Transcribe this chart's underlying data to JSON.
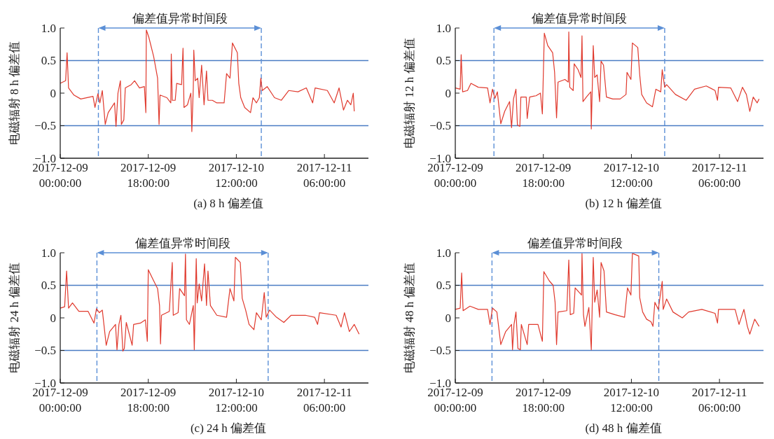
{
  "chart_data": [
    {
      "type": "line",
      "title": "(a) 8 h 偏差值",
      "ylabel": "电磁辐射 8 h 偏差值",
      "annotations": [
        "偏差值异常时间段"
      ],
      "xlim": [
        "2017-12-09T00:00",
        "2017-12-11T15:00"
      ],
      "xticks": [
        {
          "value": "2017-12-09T00:00",
          "label": "2017-12-09 00:00:00"
        },
        {
          "value": "2017-12-09T18:00",
          "label": "2017-12-09 18:00:00"
        },
        {
          "value": "2017-12-10T12:00",
          "label": "2017-12-10 12:00:00"
        },
        {
          "value": "2017-12-11T06:00",
          "label": "2017-12-11 06:00:00"
        }
      ],
      "ylim": [
        -1,
        1
      ],
      "yticks": [
        {
          "value": -1,
          "label": "−1.0"
        },
        {
          "value": -0.5,
          "label": "−0.5"
        },
        {
          "value": 0,
          "label": "0"
        },
        {
          "value": 0.5,
          "label": "0.5"
        },
        {
          "value": 1,
          "label": "1.0"
        }
      ],
      "ref_lines": [
        {
          "axis": "y",
          "value": 0.5,
          "color": "#4a7cc4"
        },
        {
          "axis": "y",
          "value": -0.5,
          "color": "#4a7cc4"
        },
        {
          "axis": "x",
          "value": "2017-12-09T07:48",
          "color": "#5b8fd6",
          "line_style": "dashed"
        },
        {
          "axis": "x",
          "value": "2017-12-10T17:06",
          "color": "#5b8fd6",
          "line_style": "dashed"
        }
      ],
      "series": [
        {
          "color": "#e03a2e",
          "x": [
            "2017-12-09T00:00",
            "2017-12-09T01:06",
            "2017-12-09T01:24",
            "2017-12-09T01:42",
            "2017-12-09T02:48",
            "2017-12-09T04:12",
            "2017-12-09T06:42",
            "2017-12-09T07:06",
            "2017-12-09T07:42",
            "2017-12-09T08:06",
            "2017-12-09T08:36",
            "2017-12-09T09:12",
            "2017-12-09T09:48",
            "2017-12-09T11:06",
            "2017-12-09T11:24",
            "2017-12-09T11:48",
            "2017-12-09T12:18",
            "2017-12-09T12:30",
            "2017-12-09T13:00",
            "2017-12-09T13:18",
            "2017-12-09T14:30",
            "2017-12-09T15:12",
            "2017-12-09T16:12",
            "2017-12-09T17:12",
            "2017-12-09T17:30",
            "2017-12-09T17:36",
            "2017-12-09T18:06",
            "2017-12-09T19:06",
            "2017-12-09T19:54",
            "2017-12-09T20:12",
            "2017-12-09T20:24",
            "2017-12-09T21:48",
            "2017-12-09T22:36",
            "2017-12-09T22:42",
            "2017-12-09T22:54",
            "2017-12-09T23:30",
            "2017-12-09T23:48",
            "2017-12-10T00:48",
            "2017-12-10T01:06",
            "2017-12-10T01:18",
            "2017-12-10T02:00",
            "2017-12-10T02:42",
            "2017-12-10T02:54",
            "2017-12-10T03:12",
            "2017-12-10T03:18",
            "2017-12-10T03:36",
            "2017-12-10T04:06",
            "2017-12-10T04:24",
            "2017-12-10T04:54",
            "2017-12-10T05:24",
            "2017-12-10T05:54",
            "2017-12-10T06:12",
            "2017-12-10T07:06",
            "2017-12-10T08:00",
            "2017-12-10T09:30",
            "2017-12-10T10:00",
            "2017-12-10T10:42",
            "2017-12-10T11:12",
            "2017-12-10T12:12",
            "2017-12-10T12:30",
            "2017-12-10T12:54",
            "2017-12-10T13:42",
            "2017-12-10T14:54",
            "2017-12-10T15:24",
            "2017-12-10T16:06",
            "2017-12-10T16:42",
            "2017-12-10T17:00",
            "2017-12-10T17:18",
            "2017-12-10T18:18",
            "2017-12-10T19:48",
            "2017-12-10T21:12",
            "2017-12-10T22:42",
            "2017-12-11T00:36",
            "2017-12-11T02:18",
            "2017-12-11T03:36",
            "2017-12-11T04:06",
            "2017-12-11T06:36",
            "2017-12-11T08:00",
            "2017-12-11T09:00",
            "2017-12-11T09:54",
            "2017-12-11T10:42",
            "2017-12-11T11:24",
            "2017-12-11T11:54",
            "2017-12-11T12:06"
          ],
          "values": [
            0.15,
            0.19,
            0.62,
            0.08,
            -0.03,
            -0.09,
            -0.05,
            -0.22,
            -0.01,
            -0.15,
            0.04,
            -0.48,
            -0.3,
            -0.15,
            -0.51,
            0,
            0.19,
            -0.48,
            -0.41,
            0.08,
            0.13,
            0.19,
            0.08,
            0.1,
            -0.3,
            0.97,
            0.86,
            0.56,
            0.23,
            -0.48,
            -0.03,
            -0.07,
            -0.15,
            0.6,
            -0.11,
            -0.11,
            0.15,
            0.13,
            0.69,
            -0.22,
            -0.18,
            0,
            -0.59,
            0.08,
            0.66,
            0.19,
            0.23,
            -0.07,
            0.43,
            -0.18,
            0.34,
            -0.11,
            -0.11,
            -0.15,
            -0.15,
            0.3,
            0.23,
            0.77,
            0.62,
            0.15,
            -0.07,
            -0.22,
            -0.3,
            -0.07,
            -0.15,
            -0.07,
            0.23,
            0.04,
            0.1,
            -0.07,
            -0.11,
            0.04,
            0.02,
            0.08,
            -0.15,
            0.08,
            0.04,
            -0.15,
            0.08,
            -0.26,
            -0.11,
            -0.18,
            0,
            -0.28
          ]
        }
      ]
    },
    {
      "type": "line",
      "title": "(b) 12 h 偏差值",
      "ylabel": "电磁辐射 12 h 偏差值",
      "annotations": [
        "偏差值异常时间段"
      ],
      "xlim": [
        "2017-12-09T00:00",
        "2017-12-11T15:00"
      ],
      "xticks": [
        {
          "value": "2017-12-09T00:00",
          "label": "2017-12-09 00:00:00"
        },
        {
          "value": "2017-12-09T18:00",
          "label": "2017-12-09 18:00:00"
        },
        {
          "value": "2017-12-10T12:00",
          "label": "2017-12-10 12:00:00"
        },
        {
          "value": "2017-12-11T06:00",
          "label": "2017-12-11 06:00:00"
        }
      ],
      "ylim": [
        -1,
        1
      ],
      "yticks": [
        {
          "value": -1,
          "label": "−1.0"
        },
        {
          "value": -0.5,
          "label": "−0.5"
        },
        {
          "value": 0,
          "label": "0"
        },
        {
          "value": 0.5,
          "label": "0.5"
        },
        {
          "value": 1,
          "label": "1.0"
        }
      ],
      "ref_lines": [
        {
          "axis": "y",
          "value": 0.5,
          "color": "#4a7cc4"
        },
        {
          "axis": "y",
          "value": -0.5,
          "color": "#4a7cc4"
        },
        {
          "axis": "x",
          "value": "2017-12-09T07:54",
          "color": "#5b8fd6",
          "line_style": "dashed"
        },
        {
          "axis": "x",
          "value": "2017-12-10T18:48",
          "color": "#5b8fd6",
          "line_style": "dashed"
        }
      ],
      "series": [
        {
          "color": "#e03a2e",
          "x": [
            "2017-12-09T00:00",
            "2017-12-09T01:00",
            "2017-12-09T01:12",
            "2017-12-09T01:30",
            "2017-12-09T02:30",
            "2017-12-09T03:12",
            "2017-12-09T04:42",
            "2017-12-09T06:36",
            "2017-12-09T07:06",
            "2017-12-09T07:36",
            "2017-12-09T08:06",
            "2017-12-09T08:36",
            "2017-12-09T09:18",
            "2017-12-09T10:06",
            "2017-12-09T11:06",
            "2017-12-09T11:30",
            "2017-12-09T11:54",
            "2017-12-09T12:24",
            "2017-12-09T12:42",
            "2017-12-09T13:12",
            "2017-12-09T13:24",
            "2017-12-09T14:30",
            "2017-12-09T14:42",
            "2017-12-09T15:12",
            "2017-12-09T16:30",
            "2017-12-09T17:24",
            "2017-12-09T17:48",
            "2017-12-09T18:12",
            "2017-12-09T18:54",
            "2017-12-09T19:54",
            "2017-12-09T20:18",
            "2017-12-09T20:42",
            "2017-12-09T21:00",
            "2017-12-09T22:24",
            "2017-12-09T23:06",
            "2017-12-09T23:12",
            "2017-12-09T23:24",
            "2017-12-10T00:06",
            "2017-12-10T00:18",
            "2017-12-10T01:06",
            "2017-12-10T01:42",
            "2017-12-10T01:54",
            "2017-12-10T02:06",
            "2017-12-10T02:48",
            "2017-12-10T03:42",
            "2017-12-10T03:48",
            "2017-12-10T04:12",
            "2017-12-10T04:30",
            "2017-12-10T05:00",
            "2017-12-10T05:30",
            "2017-12-10T05:48",
            "2017-12-10T06:18",
            "2017-12-10T06:54",
            "2017-12-10T08:12",
            "2017-12-10T09:42",
            "2017-12-10T10:54",
            "2017-12-10T11:06",
            "2017-12-10T11:54",
            "2017-12-10T12:12",
            "2017-12-10T13:18",
            "2017-12-10T13:42",
            "2017-12-10T14:06",
            "2017-12-10T15:06",
            "2017-12-10T16:18",
            "2017-12-10T17:00",
            "2017-12-10T18:00",
            "2017-12-10T18:18",
            "2017-12-10T18:48",
            "2017-12-10T19:12",
            "2017-12-10T21:00",
            "2017-12-10T23:12",
            "2017-12-11T00:54",
            "2017-12-11T03:18",
            "2017-12-11T05:06",
            "2017-12-11T05:36",
            "2017-12-11T05:48",
            "2017-12-11T08:18",
            "2017-12-11T09:42",
            "2017-12-11T10:42",
            "2017-12-11T11:30",
            "2017-12-11T12:12",
            "2017-12-11T12:54",
            "2017-12-11T13:42",
            "2017-12-11T14:06"
          ],
          "values": [
            0.08,
            0.06,
            0.59,
            0.02,
            0.04,
            0.15,
            0.09,
            0.08,
            -0.15,
            0.06,
            -0.08,
            0.02,
            -0.47,
            -0.28,
            -0.13,
            -0.53,
            -0.09,
            0.06,
            -0.49,
            -0.51,
            -0.06,
            -0.06,
            -0.39,
            -0.06,
            -0.04,
            0,
            -0.32,
            0.92,
            0.73,
            0.62,
            0.32,
            -0.38,
            0.17,
            0.21,
            0.17,
            0.94,
            0.09,
            0.04,
            0.45,
            0.36,
            0.24,
            0.88,
            -0.13,
            -0.06,
            0.02,
            -0.55,
            0.73,
            0.24,
            0.28,
            -0.13,
            0.49,
            0.43,
            -0.06,
            -0.09,
            -0.09,
            -0.02,
            0.32,
            0.21,
            0.77,
            0.7,
            0.28,
            -0.02,
            -0.15,
            -0.21,
            0.06,
            0.02,
            0.36,
            0.09,
            0.13,
            -0.02,
            -0.11,
            0.06,
            0.11,
            0.04,
            -0.11,
            0.09,
            0.08,
            -0.13,
            0.09,
            -0.02,
            -0.28,
            -0.06,
            -0.15,
            -0.09
          ]
        }
      ]
    },
    {
      "type": "line",
      "title": "(c) 24 h 偏差值",
      "ylabel": "电磁辐射 24 h  偏差值",
      "annotations": [
        "偏差值异常时间段"
      ],
      "xlim": [
        "2017-12-09T00:00",
        "2017-12-11T15:00"
      ],
      "xticks": [
        {
          "value": "2017-12-09T00:00",
          "label": "2017-12-09 00:00:00"
        },
        {
          "value": "2017-12-09T18:00",
          "label": "2017-12-09 18:00:00"
        },
        {
          "value": "2017-12-10T12:00",
          "label": "2017-12-10 12:00:00"
        },
        {
          "value": "2017-12-11T06:00",
          "label": "2017-12-11 06:00:00"
        }
      ],
      "ylim": [
        -1,
        1
      ],
      "yticks": [
        {
          "value": -1,
          "label": "−1.0"
        },
        {
          "value": -0.5,
          "label": "−0.5"
        },
        {
          "value": 0,
          "label": "0"
        },
        {
          "value": 0.5,
          "label": "0.5"
        },
        {
          "value": 1,
          "label": "1.0"
        }
      ],
      "ref_lines": [
        {
          "axis": "y",
          "value": 0.5,
          "color": "#4a7cc4"
        },
        {
          "axis": "y",
          "value": -0.5,
          "color": "#4a7cc4"
        },
        {
          "axis": "x",
          "value": "2017-12-09T07:30",
          "color": "#5b8fd6",
          "line_style": "dashed"
        },
        {
          "axis": "x",
          "value": "2017-12-10T18:30",
          "color": "#5b8fd6",
          "line_style": "dashed"
        }
      ],
      "series": [
        {
          "color": "#e03a2e",
          "x": [
            "2017-12-09T00:00",
            "2017-12-09T00:54",
            "2017-12-09T01:18",
            "2017-12-09T01:42",
            "2017-12-09T02:30",
            "2017-12-09T03:48",
            "2017-12-09T05:42",
            "2017-12-09T06:54",
            "2017-12-09T07:24",
            "2017-12-09T08:00",
            "2017-12-09T08:36",
            "2017-12-09T09:24",
            "2017-12-09T10:06",
            "2017-12-09T11:18",
            "2017-12-09T11:36",
            "2017-12-09T12:00",
            "2017-12-09T12:24",
            "2017-12-09T12:48",
            "2017-12-09T13:06",
            "2017-12-09T13:30",
            "2017-12-09T14:42",
            "2017-12-09T15:00",
            "2017-12-09T16:24",
            "2017-12-09T17:24",
            "2017-12-09T17:48",
            "2017-12-09T18:00",
            "2017-12-09T18:54",
            "2017-12-09T19:54",
            "2017-12-09T20:18",
            "2017-12-09T20:30",
            "2017-12-09T20:42",
            "2017-12-09T22:18",
            "2017-12-09T22:54",
            "2017-12-09T23:06",
            "2017-12-10T00:06",
            "2017-12-10T00:24",
            "2017-12-10T01:24",
            "2017-12-10T01:36",
            "2017-12-10T01:48",
            "2017-12-10T02:24",
            "2017-12-10T03:12",
            "2017-12-10T03:24",
            "2017-12-10T03:48",
            "2017-12-10T04:00",
            "2017-12-10T04:24",
            "2017-12-10T04:54",
            "2017-12-10T05:30",
            "2017-12-10T05:54",
            "2017-12-10T06:12",
            "2017-12-10T06:42",
            "2017-12-10T08:00",
            "2017-12-10T10:00",
            "2017-12-10T10:42",
            "2017-12-10T11:30",
            "2017-12-10T11:48",
            "2017-12-10T12:48",
            "2017-12-10T13:12",
            "2017-12-10T13:54",
            "2017-12-10T14:36",
            "2017-12-10T15:36",
            "2017-12-10T16:06",
            "2017-12-10T17:06",
            "2017-12-10T17:42",
            "2017-12-10T18:06",
            "2017-12-10T18:48",
            "2017-12-10T20:12",
            "2017-12-10T21:42",
            "2017-12-10T23:12",
            "2017-12-11T02:06",
            "2017-12-11T04:00",
            "2017-12-11T04:36",
            "2017-12-11T05:00",
            "2017-12-11T08:24",
            "2017-12-11T09:24",
            "2017-12-11T10:06",
            "2017-12-11T11:06",
            "2017-12-11T12:06",
            "2017-12-11T13:06"
          ],
          "values": [
            0.15,
            0.17,
            0.72,
            0.15,
            0.23,
            0.1,
            0.1,
            -0.08,
            0.14,
            0.08,
            0.12,
            -0.42,
            -0.21,
            -0.1,
            -0.49,
            -0.1,
            0.04,
            -0.51,
            -0.47,
            -0.07,
            -0.42,
            -0.1,
            -0.08,
            -0.03,
            -0.36,
            0.74,
            0.6,
            0.45,
            0.19,
            -0.4,
            0.04,
            0.1,
            0.85,
            0.04,
            0.08,
            0.45,
            0.34,
            0.98,
            -0.03,
            -0.1,
            0.19,
            -0.49,
            0.91,
            0.23,
            0.52,
            0.26,
            0.83,
            0.19,
            0.72,
            0.19,
            0.04,
            0.01,
            0.45,
            0.26,
            0.93,
            0.85,
            0.3,
            0.12,
            -0.1,
            -0.18,
            0.08,
            -0.03,
            0.39,
            0.01,
            0.12,
            0.01,
            -0.07,
            0.04,
            0.04,
            0.01,
            -0.1,
            0.08,
            0.04,
            -0.14,
            0.08,
            -0.21,
            -0.1,
            -0.25
          ]
        }
      ]
    },
    {
      "type": "line",
      "title": "(d) 48 h 偏差值",
      "ylabel": "电磁辐射 48 h 偏差值",
      "annotations": [
        "偏差值异常时间段"
      ],
      "xlim": [
        "2017-12-09T00:00",
        "2017-12-11T15:00"
      ],
      "xticks": [
        {
          "value": "2017-12-09T00:00",
          "label": "2017-12-09 00:00:00"
        },
        {
          "value": "2017-12-09T18:00",
          "label": "2017-12-09 18:00:00"
        },
        {
          "value": "2017-12-10T12:00",
          "label": "2017-12-10 12:00:00"
        },
        {
          "value": "2017-12-11T06:00",
          "label": "2017-12-11 06:00:00"
        }
      ],
      "ylim": [
        -1,
        1
      ],
      "yticks": [
        {
          "value": -1,
          "label": "−1.0"
        },
        {
          "value": -0.5,
          "label": "−0.5"
        },
        {
          "value": 0,
          "label": "0"
        },
        {
          "value": 0.5,
          "label": "0.5"
        },
        {
          "value": 1,
          "label": "1.0"
        }
      ],
      "ref_lines": [
        {
          "axis": "y",
          "value": 0.5,
          "color": "#4a7cc4"
        },
        {
          "axis": "y",
          "value": -0.5,
          "color": "#4a7cc4"
        },
        {
          "axis": "x",
          "value": "2017-12-09T07:30",
          "color": "#5b8fd6",
          "line_style": "dashed"
        },
        {
          "axis": "x",
          "value": "2017-12-10T17:36",
          "color": "#5b8fd6",
          "line_style": "dashed"
        }
      ],
      "series": [
        {
          "color": "#e03a2e",
          "x": [
            "2017-12-09T00:00",
            "2017-12-09T01:00",
            "2017-12-09T01:18",
            "2017-12-09T01:36",
            "2017-12-09T03:00",
            "2017-12-09T04:42",
            "2017-12-09T06:36",
            "2017-12-09T07:06",
            "2017-12-09T07:36",
            "2017-12-09T08:30",
            "2017-12-09T09:18",
            "2017-12-09T10:18",
            "2017-12-09T11:30",
            "2017-12-09T11:42",
            "2017-12-09T12:00",
            "2017-12-09T12:24",
            "2017-12-09T12:48",
            "2017-12-09T13:18",
            "2017-12-09T13:30",
            "2017-12-09T14:42",
            "2017-12-09T15:00",
            "2017-12-09T16:54",
            "2017-12-09T17:48",
            "2017-12-09T18:06",
            "2017-12-09T19:12",
            "2017-12-09T20:00",
            "2017-12-09T20:24",
            "2017-12-09T20:42",
            "2017-12-09T21:00",
            "2017-12-09T22:48",
            "2017-12-09T23:12",
            "2017-12-09T23:30",
            "2017-12-10T00:12",
            "2017-12-10T00:30",
            "2017-12-10T01:48",
            "2017-12-10T01:54",
            "2017-12-10T02:12",
            "2017-12-10T02:30",
            "2017-12-10T03:18",
            "2017-12-10T03:48",
            "2017-12-10T04:12",
            "2017-12-10T04:30",
            "2017-12-10T05:00",
            "2017-12-10T05:30",
            "2017-12-10T05:48",
            "2017-12-10T06:24",
            "2017-12-10T06:54",
            "2017-12-10T08:36",
            "2017-12-10T10:36",
            "2017-12-10T11:12",
            "2017-12-10T11:54",
            "2017-12-10T12:12",
            "2017-12-10T13:30",
            "2017-12-10T13:42",
            "2017-12-10T14:18",
            "2017-12-10T15:06",
            "2017-12-10T16:00",
            "2017-12-10T16:24",
            "2017-12-10T16:48",
            "2017-12-10T17:30",
            "2017-12-10T18:18",
            "2017-12-10T18:30",
            "2017-12-10T19:12",
            "2017-12-10T20:30",
            "2017-12-10T22:24",
            "2017-12-10T23:42",
            "2017-12-11T02:24",
            "2017-12-11T05:06",
            "2017-12-11T05:36",
            "2017-12-11T05:48",
            "2017-12-11T09:12",
            "2017-12-11T10:00",
            "2017-12-11T11:00",
            "2017-12-11T11:42",
            "2017-12-11T12:12",
            "2017-12-11T13:12",
            "2017-12-11T14:06"
          ],
          "values": [
            0.13,
            0.15,
            0.69,
            0.11,
            0.18,
            0.13,
            0.13,
            -0.1,
            0.15,
            0.09,
            -0.41,
            -0.21,
            -0.1,
            -0.49,
            -0.1,
            0.09,
            -0.47,
            -0.49,
            -0.1,
            -0.41,
            -0.1,
            -0.1,
            -0.36,
            0.71,
            0.57,
            0.5,
            0.24,
            -0.41,
            0.09,
            0.11,
            0.89,
            0.05,
            0.07,
            0.46,
            0.35,
            0.99,
            0.05,
            -0.13,
            0.16,
            -0.49,
            0.93,
            0.24,
            0.43,
            0.01,
            0.85,
            0.72,
            0.09,
            0.05,
            0.01,
            0.46,
            0.35,
            0.99,
            0.95,
            0.31,
            0.09,
            -0.02,
            -0.06,
            -0.13,
            0.24,
            0.13,
            0.56,
            0.13,
            0.29,
            0.09,
            0,
            0.09,
            0.13,
            0.07,
            -0.08,
            0.13,
            0.13,
            -0.1,
            0.13,
            -0.13,
            -0.25,
            -0.02,
            -0.13
          ]
        }
      ]
    }
  ]
}
